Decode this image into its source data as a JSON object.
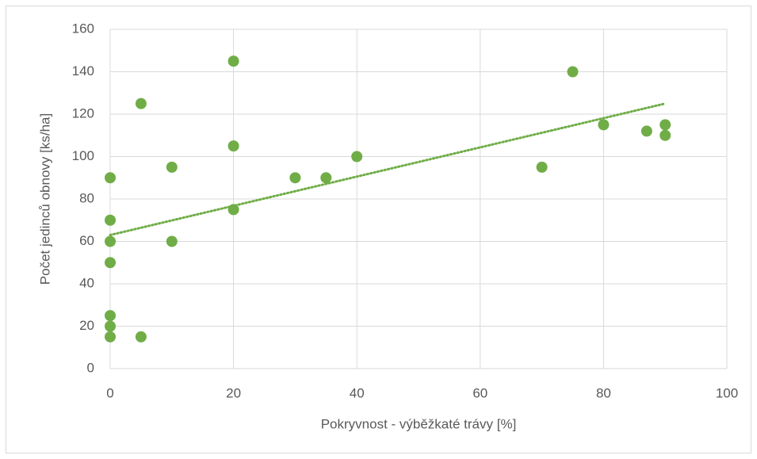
{
  "chart_data": {
    "type": "scatter",
    "x_label": "Pokryvnost - výběžkaté trávy  [%]",
    "y_label": "Počet jedinců obnovy [ks/ha]",
    "series": [
      {
        "color": "#70ad47",
        "x": [
          0,
          0,
          0,
          0,
          0,
          0,
          0,
          5,
          5,
          10,
          10,
          20,
          20,
          20,
          30,
          35,
          40,
          70,
          75,
          80,
          87,
          90,
          90
        ],
        "values": [
          90,
          70,
          60,
          50,
          25,
          20,
          15,
          125,
          15,
          95,
          60,
          145,
          105,
          75,
          90,
          90,
          100,
          95,
          140,
          115,
          112,
          115,
          110
        ]
      }
    ],
    "trendline": {
      "color": "#70ad47",
      "x": [
        0,
        90
      ],
      "values": [
        63,
        125
      ]
    },
    "xlim": [
      0,
      100
    ],
    "xticks": [
      0,
      20,
      40,
      60,
      80,
      100
    ],
    "ylim": [
      0,
      160
    ],
    "yticks": [
      0,
      20,
      40,
      60,
      80,
      100,
      120,
      140,
      160
    ],
    "grid": true
  }
}
